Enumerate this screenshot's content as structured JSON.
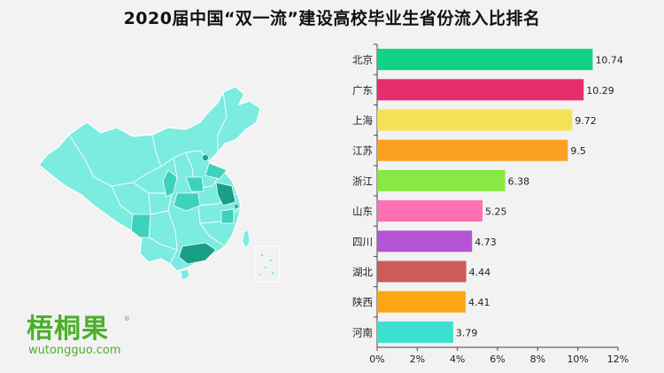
{
  "title": "2020届中国“双一流”建设高校毕业生省份流入比排名",
  "logo": {
    "text_cn": "梧桐果",
    "mark": "®",
    "text_en": "wutongguo.com"
  },
  "colors": {
    "background": "#f2f2f2",
    "map_base": "#7cebe0",
    "map_mid": "#3ed1bd",
    "map_dark": "#1a9f86"
  },
  "chart_data": {
    "type": "bar",
    "orientation": "horizontal",
    "categories": [
      "北京",
      "广东",
      "上海",
      "江苏",
      "浙江",
      "山东",
      "四川",
      "湖北",
      "陕西",
      "河南"
    ],
    "values": [
      10.74,
      10.29,
      9.72,
      9.5,
      6.38,
      5.25,
      4.73,
      4.44,
      4.41,
      3.79
    ],
    "value_labels": [
      "10.74",
      "10.29",
      "9.72",
      "9.5",
      "6.38",
      "5.25",
      "4.73",
      "4.44",
      "4.41",
      "3.79"
    ],
    "colors": [
      "#0fd382",
      "#e52e6c",
      "#f5e254",
      "#fca121",
      "#89e844",
      "#fe6fb3",
      "#b654d6",
      "#cc5c5c",
      "#fda512",
      "#3ddfd0"
    ],
    "xlim": [
      0,
      12
    ],
    "xticks": [
      0,
      2,
      4,
      6,
      8,
      10,
      12
    ],
    "xtick_labels": [
      "0%",
      "2%",
      "4%",
      "6%",
      "8%",
      "10%",
      "12%"
    ],
    "grid": false
  }
}
